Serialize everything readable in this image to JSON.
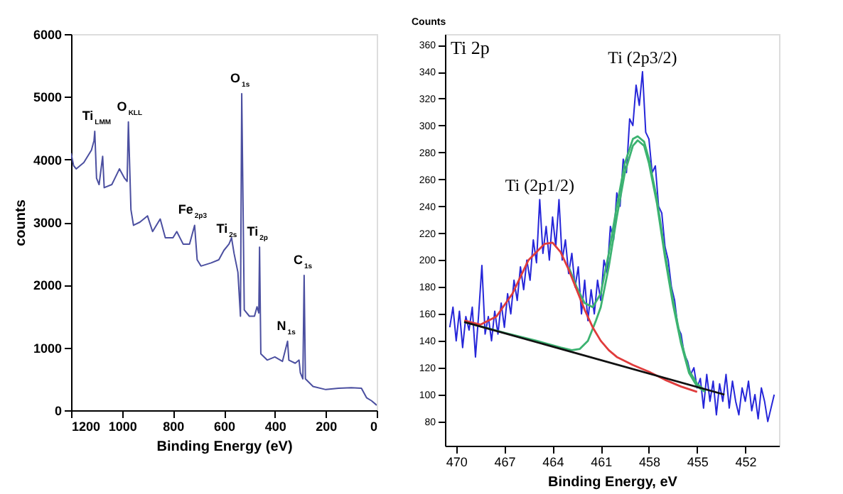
{
  "chart_data": [
    {
      "type": "line",
      "xlabel": "Binding Energy (eV)",
      "ylabel": "counts",
      "xlim": [
        1200,
        0
      ],
      "ylim": [
        0,
        6000
      ],
      "xticks": [
        1200,
        1000,
        800,
        600,
        400,
        200,
        0
      ],
      "yticks": [
        0,
        1000,
        2000,
        3000,
        4000,
        5000,
        6000
      ],
      "grid": false,
      "marker": "none",
      "line_style": "solid",
      "series": [
        {
          "color": "#4b4fa0",
          "x": [
            1200,
            1190,
            1180,
            1150,
            1120,
            1110,
            1107,
            1100,
            1090,
            1076,
            1070,
            1040,
            1010,
            990,
            980,
            975,
            965,
            955,
            930,
            900,
            880,
            850,
            830,
            800,
            785,
            760,
            735,
            715,
            705,
            690,
            650,
            620,
            600,
            580,
            570,
            560,
            545,
            535,
            530,
            520,
            500,
            480,
            470,
            463,
            460,
            455,
            430,
            400,
            370,
            350,
            345,
            320,
            305,
            300,
            290,
            285,
            280,
            250,
            200,
            150,
            100,
            60,
            40,
            20,
            0
          ],
          "values": [
            4100,
            3900,
            3850,
            3950,
            4150,
            4300,
            4450,
            3700,
            3600,
            4050,
            3550,
            3600,
            3850,
            3700,
            3650,
            4600,
            3200,
            2950,
            3000,
            3100,
            2850,
            3050,
            2750,
            2750,
            2850,
            2650,
            2650,
            2950,
            2400,
            2300,
            2350,
            2400,
            2550,
            2650,
            2750,
            2500,
            2200,
            1500,
            5050,
            1600,
            1500,
            1500,
            1650,
            1550,
            2600,
            900,
            800,
            850,
            780,
            1100,
            800,
            750,
            800,
            600,
            500,
            2150,
            500,
            380,
            330,
            350,
            360,
            350,
            200,
            150,
            80
          ]
        }
      ],
      "annotations": [
        {
          "text": "Ti$_{LMM}$",
          "x": 1107,
          "y": 4450
        },
        {
          "text": "O$_{KLL}$",
          "x": 975,
          "y": 4600
        },
        {
          "text": "Fe$_{2p3}$",
          "x": 715,
          "y": 2950
        },
        {
          "text": "Ti$_{2s}$",
          "x": 580,
          "y": 2650
        },
        {
          "text": "O$_{1s}$",
          "x": 530,
          "y": 5050
        },
        {
          "text": "Ti$_{2p}$",
          "x": 460,
          "y": 2600
        },
        {
          "text": "N$_{1s}$",
          "x": 350,
          "y": 1100
        },
        {
          "text": "C$_{1s}$",
          "x": 285,
          "y": 2150
        }
      ]
    },
    {
      "type": "line",
      "xlabel": "Binding Energy, eV",
      "ylabel": "Counts",
      "xlim": [
        470.7,
        449.9
      ],
      "ylim": [
        62,
        368
      ],
      "xticks": [
        470,
        467,
        464,
        461,
        458,
        455,
        452
      ],
      "yticks": [
        80,
        100,
        120,
        140,
        160,
        180,
        200,
        220,
        240,
        260,
        280,
        300,
        320,
        340,
        360
      ],
      "grid": false,
      "marker": "none",
      "line_style": "solid",
      "series": [
        {
          "color": "#2626d9",
          "x": [
            470.4,
            470.2,
            470.0,
            469.8,
            469.6,
            469.4,
            469.2,
            469.0,
            468.8,
            468.6,
            468.4,
            468.2,
            468.0,
            467.8,
            467.6,
            467.4,
            467.2,
            467.0,
            466.8,
            466.6,
            466.4,
            466.2,
            466.0,
            465.8,
            465.6,
            465.4,
            465.2,
            465.0,
            464.8,
            464.6,
            464.4,
            464.2,
            464.0,
            463.8,
            463.6,
            463.4,
            463.2,
            463.0,
            462.8,
            462.6,
            462.4,
            462.2,
            462.0,
            461.8,
            461.6,
            461.4,
            461.2,
            461.0,
            460.8,
            460.6,
            460.4,
            460.2,
            460.0,
            459.8,
            459.6,
            459.4,
            459.2,
            459.0,
            458.8,
            458.6,
            458.4,
            458.2,
            458.0,
            457.8,
            457.6,
            457.4,
            457.2,
            457.0,
            456.8,
            456.6,
            456.4,
            456.2,
            456.0,
            455.8,
            455.6,
            455.4,
            455.2,
            455.0,
            454.8,
            454.6,
            454.4,
            454.2,
            454.0,
            453.8,
            453.6,
            453.4,
            453.2,
            453.0,
            452.8,
            452.6,
            452.4,
            452.2,
            452.0,
            451.8,
            451.6,
            451.4,
            451.2,
            451.0,
            450.8,
            450.6,
            450.4,
            450.2
          ],
          "values": [
            150,
            165,
            140,
            162,
            135,
            158,
            148,
            165,
            128,
            160,
            196,
            145,
            158,
            140,
            162,
            145,
            168,
            150,
            175,
            160,
            185,
            170,
            195,
            178,
            200,
            185,
            215,
            198,
            245,
            205,
            225,
            200,
            232,
            210,
            245,
            200,
            215,
            190,
            205,
            180,
            195,
            160,
            185,
            155,
            178,
            160,
            185,
            170,
            200,
            190,
            225,
            215,
            250,
            240,
            275,
            265,
            305,
            300,
            330,
            315,
            340,
            295,
            290,
            265,
            270,
            240,
            235,
            210,
            200,
            180,
            170,
            150,
            145,
            130,
            125,
            115,
            120,
            105,
            112,
            90,
            115,
            95,
            110,
            85,
            108,
            95,
            115,
            90,
            110,
            95,
            85,
            105,
            95,
            110,
            88,
            100,
            82,
            105,
            95,
            80,
            90,
            100
          ]
        },
        {
          "color": "#3cb371",
          "x": [
            463.0,
            462.5,
            462.0,
            461.5,
            461.0,
            460.5,
            460.0,
            459.5,
            459.0,
            458.7,
            458.3,
            458.0,
            457.5,
            457.0,
            456.5,
            456.0,
            455.5,
            455.0,
            454.5
          ],
          "values": [
            195,
            180,
            168,
            165,
            175,
            205,
            240,
            272,
            290,
            292,
            288,
            275,
            245,
            205,
            170,
            140,
            118,
            108,
            103
          ]
        },
        {
          "color": "#3cb371",
          "x": [
            469.5,
            467.0,
            465.0,
            463.5,
            462.8,
            462.3,
            461.8,
            461.3,
            461.0,
            460.5,
            460.0,
            459.5,
            459.0,
            458.7,
            458.3,
            458.0,
            457.5,
            457.0,
            456.5,
            456.0,
            455.5,
            455.0,
            454.5
          ],
          "values": [
            154,
            146,
            140,
            135,
            133,
            134,
            140,
            155,
            165,
            195,
            232,
            265,
            285,
            289,
            285,
            272,
            242,
            202,
            167,
            138,
            116,
            106,
            102
          ]
        },
        {
          "color": "#e03c3c",
          "x": [
            469.5,
            468.5,
            467.5,
            466.5,
            465.5,
            464.5,
            464.0,
            463.5,
            463.0,
            462.5,
            462.0,
            461.5,
            461.0,
            460.5,
            460.0,
            459.0,
            458.0,
            457.0,
            456.0,
            455.0
          ],
          "values": [
            155,
            152,
            158,
            175,
            200,
            212,
            213,
            206,
            193,
            178,
            163,
            150,
            140,
            133,
            128,
            122,
            117,
            111,
            106,
            102
          ]
        },
        {
          "color": "#111111",
          "x": [
            469.5,
            453.3
          ],
          "values": [
            154,
            100
          ]
        }
      ],
      "annotations": [
        "Ti 2p",
        {
          "text": "Ti (2p3/2)",
          "x": 458.4,
          "y": 340
        },
        {
          "text": "Ti (2p1/2)",
          "x": 464.8,
          "y": 245
        }
      ]
    }
  ]
}
